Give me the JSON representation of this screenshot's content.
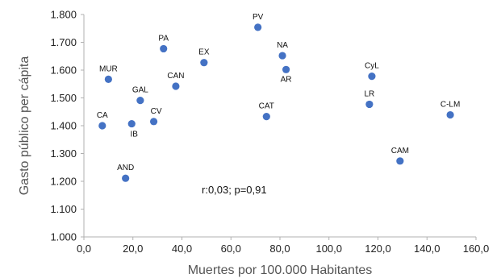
{
  "chart_data": {
    "type": "scatter",
    "title": "",
    "xlabel": "Muertes por 100.000 Habitantes",
    "ylabel": "Gasto público per cápita",
    "xlim": [
      0,
      160
    ],
    "ylim": [
      1000,
      1800
    ],
    "x_ticks": [
      0,
      20,
      40,
      60,
      80,
      100,
      120,
      140,
      160
    ],
    "x_tick_labels": [
      "0,0",
      "20,0",
      "40,0",
      "60,0",
      "80,0",
      "100,0",
      "120,0",
      "140,0",
      "160,0"
    ],
    "y_ticks": [
      1000,
      1100,
      1200,
      1300,
      1400,
      1500,
      1600,
      1700,
      1800
    ],
    "y_tick_labels": [
      "1.000",
      "1.100",
      "1.200",
      "1.300",
      "1.400",
      "1.500",
      "1.600",
      "1.700",
      "1.800"
    ],
    "grid": false,
    "marker_color": "#4472c4",
    "annotation": "r:0,03; p=0,91",
    "points": [
      {
        "label": "PV",
        "x": 71.0,
        "y": 1754
      },
      {
        "label": "PA",
        "x": 32.5,
        "y": 1677
      },
      {
        "label": "NA",
        "x": 81.0,
        "y": 1652
      },
      {
        "label": "EX",
        "x": 49.0,
        "y": 1627
      },
      {
        "label": "AR",
        "x": 82.5,
        "y": 1602
      },
      {
        "label": "CyL",
        "x": 117.5,
        "y": 1578
      },
      {
        "label": "MUR",
        "x": 10.0,
        "y": 1567
      },
      {
        "label": "CAN",
        "x": 37.5,
        "y": 1542
      },
      {
        "label": "GAL",
        "x": 23.0,
        "y": 1491
      },
      {
        "label": "LR",
        "x": 116.5,
        "y": 1477
      },
      {
        "label": "C-LM",
        "x": 149.5,
        "y": 1439
      },
      {
        "label": "CAT",
        "x": 74.5,
        "y": 1433
      },
      {
        "label": "CV",
        "x": 28.5,
        "y": 1415
      },
      {
        "label": "IB",
        "x": 19.5,
        "y": 1407
      },
      {
        "label": "CA",
        "x": 7.5,
        "y": 1400
      },
      {
        "label": "CAM",
        "x": 129.0,
        "y": 1273
      },
      {
        "label": "AND",
        "x": 17.0,
        "y": 1211
      }
    ]
  }
}
